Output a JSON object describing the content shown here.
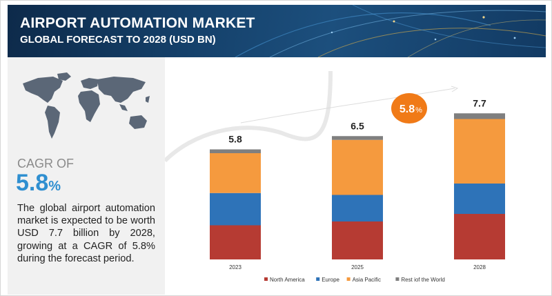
{
  "header": {
    "title": "AIRPORT AUTOMATION MARKET",
    "subtitle": "GLOBAL FORECAST TO 2028 (USD BN)"
  },
  "left_panel": {
    "cagr_label": "CAGR OF",
    "cagr_value": "5.8",
    "cagr_unit": "%",
    "description": "The global airport automation market is expected to be worth USD 7.7 billion by 2028, growing at a CAGR of 5.8% during the forecast period."
  },
  "chart_data": {
    "type": "bar",
    "stacked": true,
    "categories": [
      "2023",
      "2025",
      "2028"
    ],
    "totals": [
      5.8,
      6.5,
      7.7
    ],
    "total_labels": [
      "5.8",
      "6.5",
      "7.7"
    ],
    "series": [
      {
        "name": "North America",
        "color": "#b63b33",
        "values": [
          1.8,
          2.0,
          2.4
        ]
      },
      {
        "name": "Europe",
        "color": "#2e73b8",
        "values": [
          1.7,
          1.4,
          1.6
        ]
      },
      {
        "name": "Asia Pacific",
        "color": "#f59a3e",
        "values": [
          2.1,
          2.9,
          3.4
        ]
      },
      {
        "name": "Rest iof the World",
        "color": "#7f7f7f",
        "values": [
          0.2,
          0.2,
          0.3
        ]
      }
    ],
    "growth_badge": {
      "value": "5.8",
      "unit": "%",
      "color": "#f07a17"
    },
    "ylim": [
      0,
      8.4
    ],
    "grid": false,
    "legend_position": "bottom"
  }
}
